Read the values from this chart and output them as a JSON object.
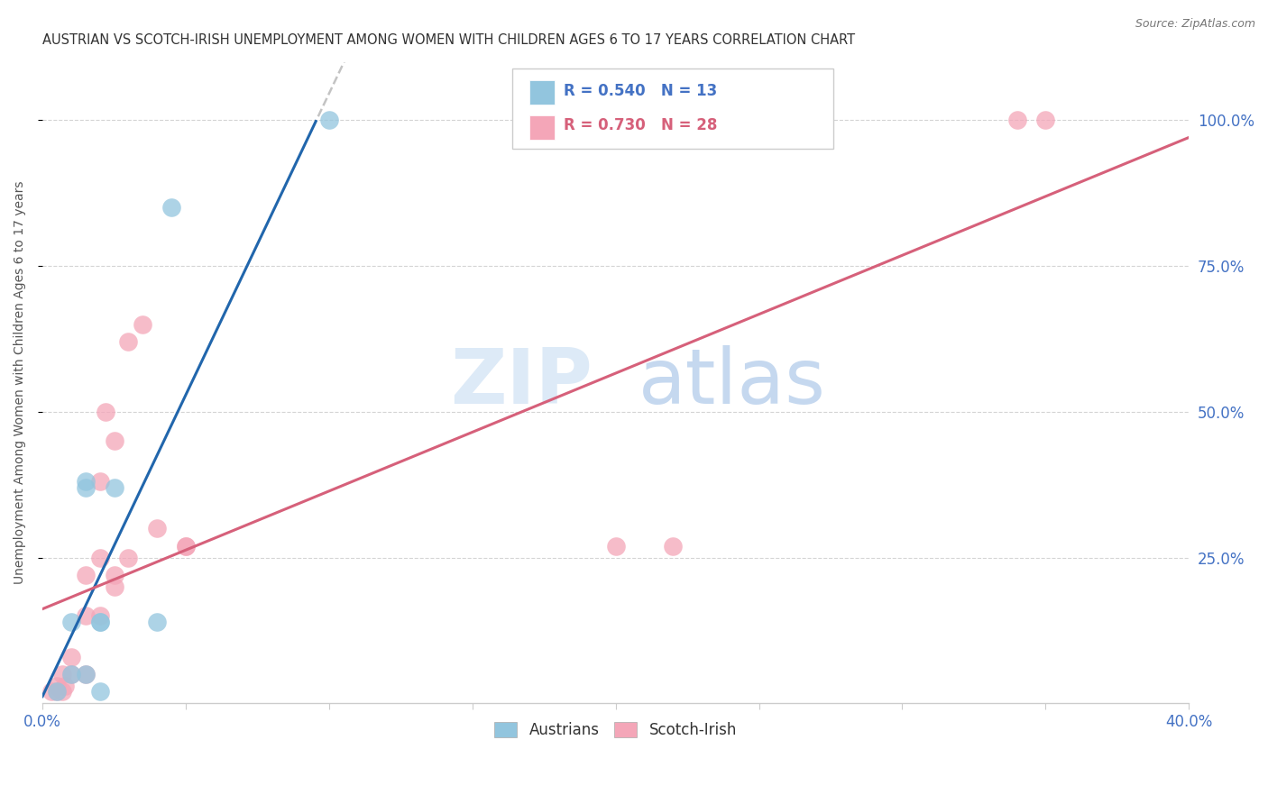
{
  "title": "AUSTRIAN VS SCOTCH-IRISH UNEMPLOYMENT AMONG WOMEN WITH CHILDREN AGES 6 TO 17 YEARS CORRELATION CHART",
  "source": "Source: ZipAtlas.com",
  "ylabel": "Unemployment Among Women with Children Ages 6 to 17 years",
  "legend_austrians": "Austrians",
  "legend_scotch_irish": "Scotch-Irish",
  "r_austrians": "0.540",
  "n_austrians": "13",
  "r_scotch_irish": "0.730",
  "n_scotch_irish": "28",
  "austrians_color": "#92c5de",
  "scotch_irish_color": "#f4a6b8",
  "trend_austrians_color": "#2166ac",
  "trend_scotch_irish_color": "#d6607a",
  "dashed_color": "#aaaaaa",
  "austrians_x": [
    0.5,
    1.0,
    1.0,
    1.5,
    1.5,
    1.5,
    2.0,
    2.0,
    2.0,
    2.5,
    4.0,
    4.5,
    10.0
  ],
  "austrians_y": [
    2.0,
    5.0,
    14.0,
    5.0,
    37.0,
    38.0,
    2.0,
    14.0,
    14.0,
    37.0,
    14.0,
    85.0,
    100.0
  ],
  "scotch_irish_x": [
    0.3,
    0.5,
    0.5,
    0.7,
    0.7,
    0.8,
    1.0,
    1.0,
    1.5,
    1.5,
    1.5,
    2.0,
    2.0,
    2.0,
    2.2,
    2.5,
    2.5,
    2.5,
    3.0,
    3.0,
    3.5,
    4.0,
    5.0,
    5.0,
    20.0,
    22.0,
    34.0,
    35.0
  ],
  "scotch_irish_y": [
    2.0,
    2.0,
    3.0,
    2.0,
    5.0,
    3.0,
    5.0,
    8.0,
    5.0,
    15.0,
    22.0,
    15.0,
    25.0,
    38.0,
    50.0,
    20.0,
    22.0,
    45.0,
    25.0,
    62.0,
    65.0,
    30.0,
    27.0,
    27.0,
    27.0,
    27.0,
    100.0,
    100.0
  ],
  "xmin": 0.0,
  "xmax": 40.0,
  "ymin": 0.0,
  "ymax": 110.0,
  "yticks": [
    25.0,
    50.0,
    75.0,
    100.0
  ],
  "ytick_labels": [
    "25.0%",
    "50.0%",
    "75.0%",
    "100.0%"
  ],
  "xtick_show": [
    0.0,
    40.0
  ],
  "xtick_labels": [
    "0.0%",
    "40.0%"
  ],
  "background_color": "#ffffff",
  "grid_color": "#d0d0d0",
  "text_color": "#4472c4",
  "title_color": "#333333",
  "source_color": "#777777"
}
